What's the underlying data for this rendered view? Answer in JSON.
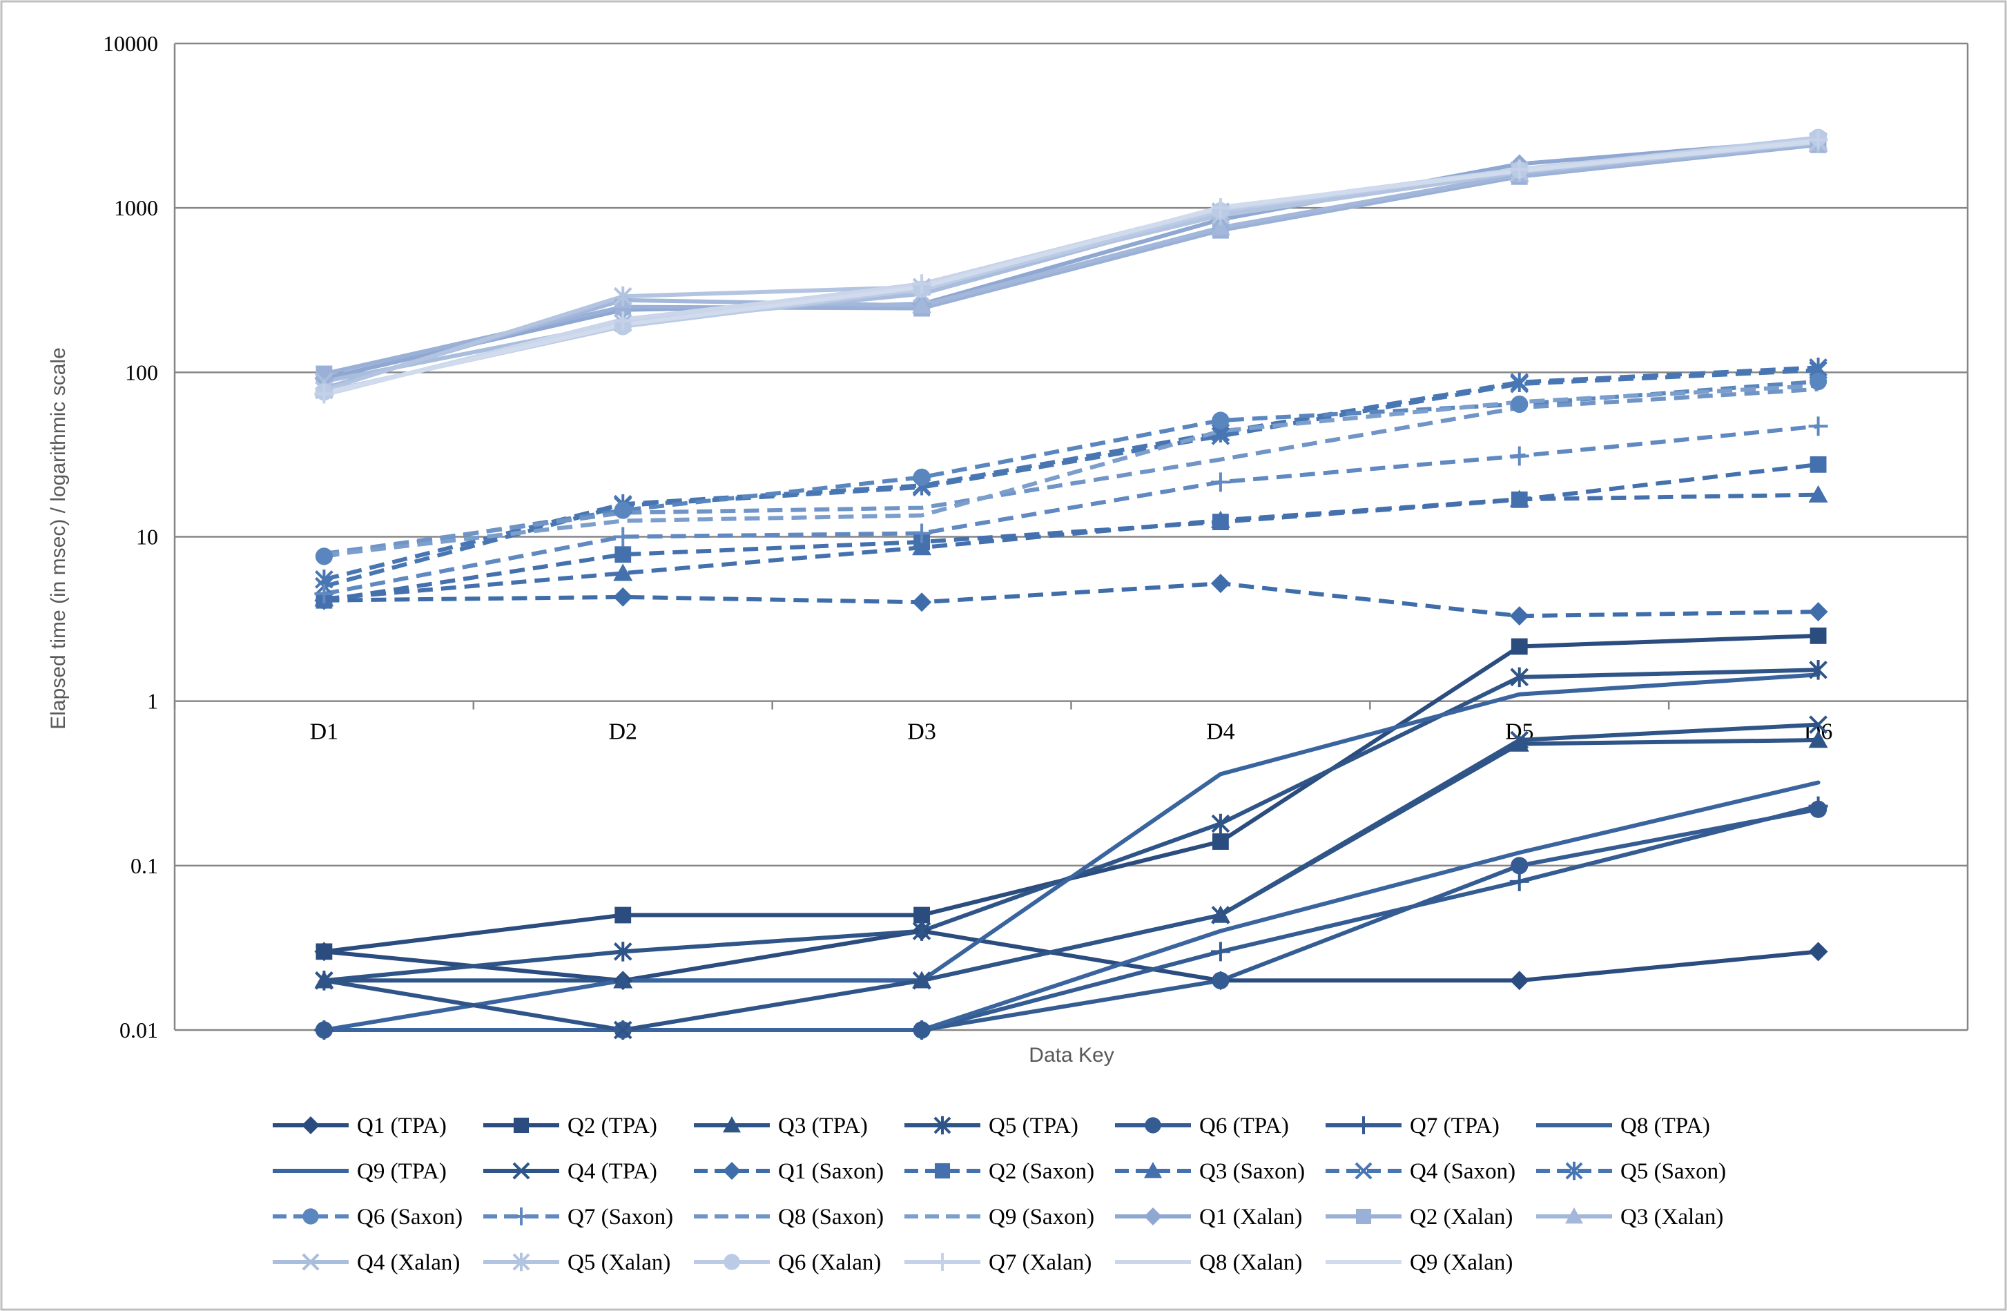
{
  "chart_data": {
    "type": "line",
    "yscale": "log",
    "ylim": [
      0.01,
      10000
    ],
    "yticks": [
      0.01,
      0.1,
      1,
      10,
      100,
      1000,
      10000
    ],
    "ytick_labels": [
      "0.01",
      "0.1",
      "1",
      "10",
      "100",
      "1000",
      "10000"
    ],
    "categories": [
      "D1",
      "D2",
      "D3",
      "D4",
      "D5",
      "D6"
    ],
    "xlabel": "Data Key",
    "ylabel": "Elapsed time (in msec) / logarithmic scale",
    "grid": true,
    "legend_position": "bottom",
    "series": [
      {
        "name": "Q1 (TPA)",
        "group": "TPA",
        "marker": "diamond",
        "color": "#2B4C7E",
        "values": [
          0.03,
          0.02,
          0.04,
          0.02,
          0.02,
          0.03
        ]
      },
      {
        "name": "Q2 (TPA)",
        "group": "TPA",
        "marker": "square",
        "color": "#2B4C7E",
        "values": [
          0.03,
          0.05,
          0.05,
          0.14,
          2.15,
          2.5
        ]
      },
      {
        "name": "Q3 (TPA)",
        "group": "TPA",
        "marker": "triangle",
        "color": "#2F5487",
        "values": [
          0.02,
          0.02,
          0.02,
          0.05,
          0.55,
          0.58
        ]
      },
      {
        "name": "Q5 (TPA)",
        "group": "TPA",
        "marker": "star",
        "color": "#2F5487",
        "values": [
          0.02,
          0.03,
          0.04,
          0.18,
          1.4,
          1.55
        ]
      },
      {
        "name": "Q6 (TPA)",
        "group": "TPA",
        "marker": "circle",
        "color": "#345C93",
        "values": [
          0.01,
          0.01,
          0.01,
          0.02,
          0.1,
          0.22
        ]
      },
      {
        "name": "Q7 (TPA)",
        "group": "TPA",
        "marker": "plus",
        "color": "#345C93",
        "values": [
          0.01,
          0.01,
          0.01,
          0.03,
          0.08,
          0.23
        ]
      },
      {
        "name": "Q8 (TPA)",
        "group": "TPA",
        "marker": "none",
        "color": "#3A649E",
        "values": [
          0.01,
          0.01,
          0.01,
          0.04,
          0.12,
          0.32
        ]
      },
      {
        "name": "Q9 (TPA)",
        "group": "TPA",
        "marker": "none",
        "color": "#3A649E",
        "values": [
          0.01,
          0.02,
          0.02,
          0.36,
          1.1,
          1.45
        ]
      },
      {
        "name": "Q4 (TPA)",
        "group": "TPA",
        "marker": "x",
        "color": "#2F5487",
        "values": [
          0.02,
          0.01,
          0.02,
          0.05,
          0.58,
          0.72
        ]
      },
      {
        "name": "Q1 (Saxon)",
        "group": "Saxon",
        "marker": "diamond",
        "color": "#3F6DA9",
        "values": [
          4.1,
          4.3,
          4.0,
          5.2,
          3.3,
          3.5
        ]
      },
      {
        "name": "Q2 (Saxon)",
        "group": "Saxon",
        "marker": "square",
        "color": "#4470AD",
        "values": [
          4.1,
          7.8,
          9.3,
          12.3,
          16.8,
          27.5
        ]
      },
      {
        "name": "Q3 (Saxon)",
        "group": "Saxon",
        "marker": "triangle",
        "color": "#4470AD",
        "values": [
          4.2,
          6.0,
          8.6,
          12.6,
          16.9,
          18.0
        ]
      },
      {
        "name": "Q4 (Saxon)",
        "group": "Saxon",
        "marker": "x",
        "color": "#4876B3",
        "values": [
          5.0,
          15.5,
          20.0,
          41.0,
          85.0,
          103.0
        ]
      },
      {
        "name": "Q5 (Saxon)",
        "group": "Saxon",
        "marker": "star",
        "color": "#4876B3",
        "values": [
          5.5,
          15.8,
          20.5,
          43.0,
          87.0,
          107.0
        ]
      },
      {
        "name": "Q6 (Saxon)",
        "group": "Saxon",
        "marker": "circle",
        "color": "#5A86BF",
        "values": [
          7.6,
          14.5,
          23.0,
          51.0,
          64.0,
          88.0
        ]
      },
      {
        "name": "Q7 (Saxon)",
        "group": "Saxon",
        "marker": "plus",
        "color": "#6189C1",
        "values": [
          4.5,
          10.0,
          10.5,
          21.5,
          31.0,
          47.0
        ]
      },
      {
        "name": "Q8 (Saxon)",
        "group": "Saxon",
        "marker": "none",
        "color": "#7094C6",
        "values": [
          7.9,
          14.0,
          15.0,
          29.5,
          61.0,
          79.0
        ]
      },
      {
        "name": "Q9 (Saxon)",
        "group": "Saxon",
        "marker": "none",
        "color": "#7C9ECC",
        "values": [
          7.7,
          12.5,
          13.5,
          44.0,
          66.0,
          83.0
        ]
      },
      {
        "name": "Q1 (Xalan)",
        "group": "Xalan",
        "marker": "diamond",
        "color": "#8FA8D2",
        "values": [
          92.0,
          240.0,
          260.0,
          850.0,
          1850.0,
          2600.0
        ]
      },
      {
        "name": "Q2 (Xalan)",
        "group": "Xalan",
        "marker": "square",
        "color": "#9AB0D6",
        "values": [
          98.0,
          250.0,
          245.0,
          730.0,
          1550.0,
          2420.0
        ]
      },
      {
        "name": "Q3 (Xalan)",
        "group": "Xalan",
        "marker": "triangle",
        "color": "#A2B7DA",
        "values": [
          80.0,
          275.0,
          255.0,
          760.0,
          1600.0,
          2450.0
        ]
      },
      {
        "name": "Q4 (Xalan)",
        "group": "Xalan",
        "marker": "x",
        "color": "#A9BDDD",
        "values": [
          88.0,
          200.0,
          300.0,
          950.0,
          1700.0,
          2550.0
        ]
      },
      {
        "name": "Q5 (Xalan)",
        "group": "Xalan",
        "marker": "star",
        "color": "#B3C4E1",
        "values": [
          78.0,
          290.0,
          330.0,
          900.0,
          1650.0,
          2500.0
        ]
      },
      {
        "name": "Q6 (Xalan)",
        "group": "Xalan",
        "marker": "circle",
        "color": "#BCCBE5",
        "values": [
          76.0,
          190.0,
          320.0,
          960.0,
          1700.0,
          2680.0
        ]
      },
      {
        "name": "Q7 (Xalan)",
        "group": "Xalan",
        "marker": "plus",
        "color": "#C4D1E8",
        "values": [
          74.0,
          205.0,
          345.0,
          1000.0,
          1720.0,
          2600.0
        ]
      },
      {
        "name": "Q8 (Xalan)",
        "group": "Xalan",
        "marker": "none",
        "color": "#CBD6EB",
        "values": [
          73.0,
          210.0,
          340.0,
          990.0,
          1700.0,
          2520.0
        ]
      },
      {
        "name": "Q9 (Xalan)",
        "group": "Xalan",
        "marker": "none",
        "color": "#D1DBEE",
        "values": [
          75.0,
          195.0,
          330.0,
          1010.0,
          1680.0,
          2560.0
        ]
      }
    ]
  }
}
